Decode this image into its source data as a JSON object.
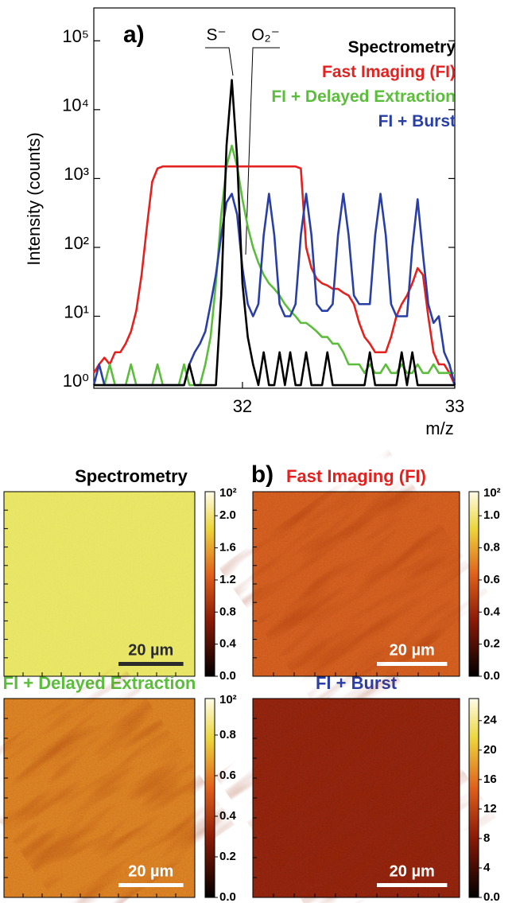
{
  "chart_data": {
    "type": "line",
    "panel_label": "a)",
    "y_label": "Intensity (counts)",
    "x_label": "m/z",
    "annotations": [
      "S⁻",
      "O₂⁻"
    ],
    "log_y": true,
    "xlim": [
      31.3,
      33
    ],
    "ylim": [
      0.9,
      300000
    ],
    "xticks": [
      32,
      33
    ],
    "yticks": [
      {
        "value": 1,
        "label": "10⁰"
      },
      {
        "value": 10,
        "label": "10¹"
      },
      {
        "value": 100,
        "label": "10²"
      },
      {
        "value": 1000,
        "label": "10³"
      },
      {
        "value": 10000,
        "label": "10⁴"
      },
      {
        "value": 100000,
        "label": "10⁵"
      }
    ],
    "x": [
      31.3,
      31.325,
      31.35,
      31.375,
      31.4,
      31.425,
      31.45,
      31.475,
      31.5,
      31.525,
      31.55,
      31.575,
      31.6,
      31.625,
      31.65,
      31.675,
      31.7,
      31.725,
      31.75,
      31.775,
      31.8,
      31.825,
      31.85,
      31.875,
      31.9,
      31.925,
      31.95,
      31.975,
      32,
      32.025,
      32.05,
      32.075,
      32.1,
      32.125,
      32.15,
      32.175,
      32.2,
      32.225,
      32.25,
      32.275,
      32.3,
      32.325,
      32.35,
      32.375,
      32.4,
      32.425,
      32.45,
      32.475,
      32.5,
      32.525,
      32.55,
      32.575,
      32.6,
      32.625,
      32.65,
      32.675,
      32.7,
      32.725,
      32.75,
      32.775,
      32.8,
      32.825,
      32.85,
      32.875,
      32.9,
      32.925,
      32.95,
      32.975,
      33
    ],
    "series": [
      {
        "name": "Spectrometry",
        "color": "#000000",
        "values": [
          1,
          1,
          1,
          1,
          1,
          1,
          1,
          1,
          1,
          1,
          1,
          1,
          1,
          1,
          1,
          1,
          1,
          1,
          2,
          1,
          1,
          1,
          1,
          1,
          20,
          3000,
          27000,
          2000,
          30,
          5,
          2,
          1,
          3,
          1,
          1,
          3,
          1,
          3,
          1,
          1,
          3,
          1,
          1,
          1,
          3,
          1,
          1,
          1,
          1,
          1,
          1,
          1,
          3,
          1,
          1,
          1,
          1,
          1,
          3,
          1,
          3,
          1,
          1,
          1,
          1,
          1,
          1,
          1,
          1
        ]
      },
      {
        "name": "Fast Imaging (FI)",
        "color": "#e4211e",
        "values": [
          1.5,
          2,
          2.5,
          2,
          3,
          3,
          4,
          6,
          12,
          40,
          200,
          900,
          1400,
          1500,
          1500,
          1500,
          1500,
          1500,
          1500,
          1500,
          1500,
          1500,
          1500,
          1500,
          1500,
          1500,
          1500,
          1500,
          1500,
          1500,
          1500,
          1500,
          1500,
          1500,
          1500,
          1500,
          1500,
          1500,
          1500,
          1400,
          100,
          50,
          35,
          30,
          28,
          25,
          25,
          22,
          20,
          15,
          8,
          5,
          4,
          3,
          3,
          3,
          5,
          10,
          15,
          20,
          30,
          50,
          40,
          10,
          3,
          2,
          2,
          1.5,
          1
        ]
      },
      {
        "name": "FI + Delayed Extraction",
        "color": "#5cbd3c",
        "values": [
          1,
          1,
          1,
          2,
          1,
          1,
          1,
          2,
          1,
          1,
          1,
          1,
          2,
          1,
          1,
          1,
          1,
          2,
          1,
          1,
          1,
          2,
          5,
          30,
          300,
          1500,
          3000,
          1500,
          500,
          200,
          100,
          60,
          40,
          30,
          25,
          20,
          15,
          12,
          10,
          8,
          8,
          7,
          6,
          5,
          5,
          4,
          4,
          3,
          2,
          2,
          2,
          1.5,
          2,
          1.5,
          1.5,
          2,
          1.5,
          1.5,
          2,
          1.5,
          1.5,
          2,
          1.5,
          1.5,
          2,
          1.5,
          1.5,
          1.5,
          1.5
        ]
      },
      {
        "name": "FI + Burst",
        "color": "#2a3fa6",
        "values": [
          1,
          2,
          1,
          1,
          1,
          1,
          1,
          1,
          1,
          1,
          1,
          1,
          1,
          1,
          1,
          1,
          1,
          1,
          2,
          3,
          4,
          6,
          15,
          40,
          150,
          450,
          600,
          300,
          50,
          15,
          10,
          15,
          150,
          600,
          150,
          15,
          10,
          10,
          15,
          150,
          600,
          150,
          15,
          12,
          12,
          15,
          150,
          600,
          150,
          20,
          15,
          15,
          15,
          150,
          600,
          150,
          15,
          10,
          10,
          10,
          100,
          500,
          80,
          15,
          8,
          10,
          3,
          2,
          1
        ]
      }
    ]
  },
  "panel_b": {
    "panel_label": "b)",
    "scale_bar": "20 µm",
    "panels": [
      {
        "colorbar_exponent": "10²",
        "colorbar_lim": [
          0,
          2.3
        ],
        "colorbar_ticks": [
          {
            "value": 0,
            "label": "0.0"
          },
          0.4,
          0.8,
          1.2,
          1.6,
          {
            "value": 2,
            "label": "2.0"
          }
        ]
      },
      {
        "colorbar_exponent": "10²",
        "colorbar_lim": [
          0,
          1.15
        ],
        "colorbar_ticks": [
          {
            "value": 0,
            "label": "0.0"
          },
          0.2,
          0.4,
          0.6,
          0.8,
          {
            "value": 1,
            "label": "1.0"
          }
        ]
      },
      {
        "colorbar_exponent": "10²",
        "colorbar_lim": [
          0,
          0.98
        ],
        "colorbar_ticks": [
          {
            "value": 0,
            "label": "0.0"
          },
          0.2,
          0.4,
          0.6,
          0.8
        ]
      },
      {
        "colorbar_lim": [
          0,
          27
        ],
        "colorbar_ticks": [
          {
            "value": 0,
            "label": "0.0"
          },
          4,
          8,
          12,
          16,
          20,
          24
        ]
      }
    ]
  }
}
